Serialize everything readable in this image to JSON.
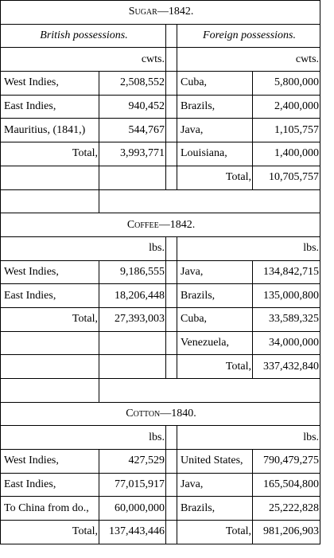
{
  "sections": [
    {
      "title": "Sugar—1842.",
      "header": {
        "left": "British possessions.",
        "right": "Foreign possessions."
      },
      "units": {
        "left": "cwts.",
        "right": "cwts."
      },
      "left_rows": [
        [
          "West Indies,",
          "2,508,552"
        ],
        [
          "East Indies,",
          "940,452"
        ],
        [
          "Mauritius, (1841,)",
          "544,767"
        ]
      ],
      "left_total": [
        "Total,",
        "3,993,771"
      ],
      "right_rows": [
        [
          "Cuba,",
          "5,800,000"
        ],
        [
          "Brazils,",
          "2,400,000"
        ],
        [
          "Java,",
          "1,105,757"
        ],
        [
          "Louisiana,",
          "1,400,000"
        ]
      ],
      "right_total": [
        "Total,",
        "10,705,757"
      ]
    },
    {
      "title": "Coffee—1842.",
      "units": {
        "left": "lbs.",
        "right": "lbs."
      },
      "left_rows": [
        [
          "West Indies,",
          "9,186,555"
        ],
        [
          "East Indies,",
          "18,206,448"
        ]
      ],
      "left_total": [
        "Total,",
        "27,393,003"
      ],
      "right_rows": [
        [
          "Java,",
          "134,842,715"
        ],
        [
          "Brazils,",
          "135,000,800"
        ],
        [
          "Cuba,",
          "33,589,325"
        ],
        [
          "Venezuela,",
          "34,000,000"
        ]
      ],
      "right_total": [
        "Total,",
        "337,432,840"
      ]
    },
    {
      "title": "Cotton—1840.",
      "units": {
        "left": "lbs.",
        "right": "lbs."
      },
      "left_rows": [
        [
          "West Indies,",
          "427,529"
        ],
        [
          "East Indies,",
          "77,015,917"
        ],
        [
          "To China from do.,",
          "60,000,000"
        ]
      ],
      "left_total": [
        "Total,",
        "137,443,446"
      ],
      "right_rows": [
        [
          "United States,",
          "790,479,275"
        ],
        [
          "Java,",
          "165,504,800"
        ],
        [
          "Brazils,",
          "25,222,828"
        ]
      ],
      "right_total": [
        "Total,",
        "981,206,903"
      ]
    }
  ]
}
